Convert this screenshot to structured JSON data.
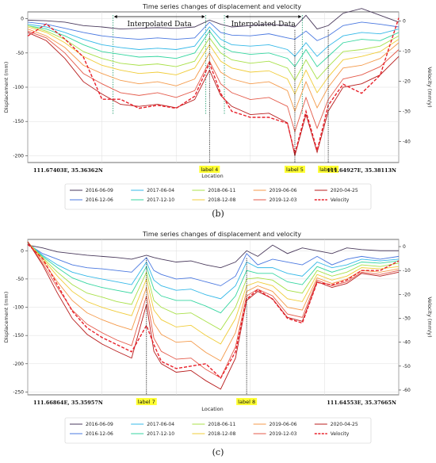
{
  "palette": {
    "2016-06-09": "#4a3a5c",
    "2016-12-06": "#4a78e0",
    "2017-06-04": "#34b8e8",
    "2017-12-10": "#35d6a0",
    "2018-06-11": "#a8e048",
    "2018-12-08": "#f0cc38",
    "2019-06-06": "#f49a4a",
    "2019-12-03": "#e45a4a",
    "2020-04-25": "#b81c1c",
    "Velocity": "#e8202a",
    "label_bg": "#ffff33"
  },
  "chart_data": [
    {
      "type": "line",
      "caption": "(b)",
      "title": "Time series changes of displacement and velocity",
      "xlabel": "Location",
      "ylabel": "Displacement (mm)",
      "ylabel_right": "Velocity (mm/y)",
      "xlim": [
        0,
        100
      ],
      "ylim": [
        -210,
        10
      ],
      "ylim_right": [
        -47,
        3
      ],
      "yticks": [
        0,
        -50,
        -100,
        -150,
        -200
      ],
      "yticks_right": [
        0,
        -10,
        -20,
        -30,
        -40
      ],
      "grid": true,
      "legend": "bottom, 6 columns",
      "start_coord": "111.67403E, 35.36362N",
      "end_coord": "111.64927E, 35.38113N",
      "vlines": [
        {
          "x": 49,
          "label": "label 4"
        },
        {
          "x": 72,
          "label": "label 5"
        },
        {
          "x": 81,
          "label": "label 6"
        }
      ],
      "interpolated_regions": [
        {
          "from": 23,
          "to": 48,
          "label": "Interpolated Data"
        },
        {
          "from": 53,
          "to": 74,
          "label": "Interpolated Data"
        }
      ],
      "x": [
        0,
        5,
        10,
        15,
        20,
        25,
        30,
        35,
        40,
        45,
        49,
        52,
        55,
        60,
        65,
        70,
        72,
        75,
        78,
        81,
        85,
        90,
        95,
        100
      ],
      "series": [
        {
          "name": "2016-06-09",
          "values": [
            -2,
            -3,
            -5,
            -10,
            -12,
            -15,
            -14,
            -13,
            -14,
            -12,
            -2,
            -8,
            -12,
            -10,
            -8,
            -10,
            -12,
            5,
            -15,
            -10,
            8,
            15,
            5,
            -5
          ]
        },
        {
          "name": "2016-12-06",
          "values": [
            -5,
            -8,
            -14,
            -20,
            -25,
            -28,
            -30,
            -28,
            -30,
            -28,
            -5,
            -20,
            -24,
            -25,
            -22,
            -28,
            -30,
            -18,
            -32,
            -25,
            -10,
            -5,
            -8,
            -12
          ]
        },
        {
          "name": "2017-06-04",
          "values": [
            -8,
            -12,
            -20,
            -30,
            -38,
            -42,
            -45,
            -43,
            -45,
            -40,
            -12,
            -30,
            -38,
            -40,
            -38,
            -45,
            -55,
            -35,
            -55,
            -40,
            -25,
            -20,
            -22,
            -15
          ]
        },
        {
          "name": "2017-12-10",
          "values": [
            -10,
            -15,
            -25,
            -38,
            -48,
            -52,
            -56,
            -55,
            -58,
            -50,
            -18,
            -40,
            -48,
            -52,
            -50,
            -58,
            -70,
            -45,
            -70,
            -55,
            -35,
            -30,
            -32,
            -20
          ]
        },
        {
          "name": "2018-06-11",
          "values": [
            -10,
            -18,
            -30,
            -48,
            -58,
            -65,
            -68,
            -66,
            -70,
            -62,
            -28,
            -50,
            -60,
            -65,
            -62,
            -72,
            -90,
            -60,
            -88,
            -70,
            -48,
            -45,
            -40,
            -25
          ]
        },
        {
          "name": "2018-12-08",
          "values": [
            -12,
            -20,
            -35,
            -55,
            -68,
            -75,
            -80,
            -78,
            -82,
            -72,
            -38,
            -62,
            -72,
            -78,
            -76,
            -88,
            -110,
            -75,
            -108,
            -85,
            -60,
            -55,
            -48,
            -30
          ]
        },
        {
          "name": "2019-06-06",
          "values": [
            -15,
            -25,
            -42,
            -68,
            -80,
            -90,
            -95,
            -92,
            -98,
            -88,
            -50,
            -78,
            -88,
            -95,
            -92,
            -105,
            -135,
            -92,
            -130,
            -100,
            -72,
            -68,
            -58,
            -35
          ]
        },
        {
          "name": "2019-12-03",
          "values": [
            -18,
            -28,
            -50,
            -80,
            -95,
            -108,
            -112,
            -108,
            -115,
            -105,
            -62,
            -95,
            -108,
            -118,
            -115,
            -128,
            -165,
            -115,
            -160,
            -118,
            -88,
            -82,
            -70,
            -45
          ]
        },
        {
          "name": "2020-04-25",
          "values": [
            -20,
            -32,
            -58,
            -92,
            -110,
            -125,
            -128,
            -125,
            -130,
            -118,
            -75,
            -112,
            -128,
            -140,
            -138,
            -152,
            -200,
            -140,
            -195,
            -135,
            -100,
            -95,
            -82,
            -55
          ]
        }
      ],
      "velocity": {
        "name": "Velocity",
        "values": [
          -5,
          -1,
          -6,
          -12,
          -26,
          -26,
          -29,
          -28,
          -29,
          -25,
          -14,
          -24,
          -30,
          -32,
          -32,
          -34,
          -44,
          -30,
          -43,
          -28,
          -21,
          -24,
          -18,
          1
        ]
      }
    },
    {
      "type": "line",
      "caption": "(c)",
      "title": "Time series changes of displacement and velocity",
      "xlabel": "Location",
      "ylabel": "Displacement (mm)",
      "ylabel_right": "Velocity (mm/y)",
      "xlim": [
        0,
        100
      ],
      "ylim": [
        -255,
        20
      ],
      "ylim_right": [
        -62,
        3
      ],
      "yticks": [
        0,
        -50,
        -100,
        -150,
        -200,
        -250
      ],
      "yticks_right": [
        0,
        -10,
        -20,
        -30,
        -40,
        -50,
        -60
      ],
      "grid": true,
      "legend": "bottom, 6 columns",
      "start_coord": "111.66864E, 35.35957N",
      "end_coord": "111.64553E, 35.37665N",
      "vlines": [
        {
          "x": 32,
          "label": "label 7"
        },
        {
          "x": 59,
          "label": "label 8"
        }
      ],
      "x": [
        0,
        4,
        8,
        12,
        16,
        20,
        24,
        28,
        32,
        34,
        36,
        40,
        44,
        48,
        52,
        56,
        59,
        62,
        66,
        70,
        74,
        78,
        82,
        86,
        90,
        95,
        100
      ],
      "series": [
        {
          "name": "2016-06-09",
          "values": [
            10,
            5,
            -2,
            -5,
            -8,
            -10,
            -12,
            -15,
            -8,
            -12,
            -15,
            -20,
            -18,
            -25,
            -30,
            -20,
            0,
            -10,
            10,
            -5,
            5,
            0,
            -5,
            5,
            2,
            0,
            0
          ]
        },
        {
          "name": "2016-12-06",
          "values": [
            12,
            -5,
            -15,
            -25,
            -30,
            -32,
            -35,
            -38,
            -12,
            -35,
            -42,
            -50,
            -48,
            -55,
            -62,
            -45,
            -5,
            -25,
            -15,
            -20,
            -25,
            -10,
            -25,
            -15,
            -10,
            -15,
            -10
          ]
        },
        {
          "name": "2017-06-04",
          "values": [
            14,
            -8,
            -25,
            -38,
            -45,
            -50,
            -55,
            -60,
            -20,
            -52,
            -62,
            -70,
            -68,
            -78,
            -85,
            -62,
            -20,
            -30,
            -30,
            -40,
            -45,
            -20,
            -30,
            -25,
            -15,
            -18,
            -15
          ]
        },
        {
          "name": "2017-12-10",
          "values": [
            14,
            -10,
            -30,
            -48,
            -58,
            -65,
            -70,
            -75,
            -28,
            -68,
            -80,
            -88,
            -88,
            -98,
            -110,
            -80,
            -35,
            -40,
            -40,
            -55,
            -60,
            -28,
            -38,
            -30,
            -20,
            -22,
            -18
          ]
        },
        {
          "name": "2018-06-11",
          "values": [
            15,
            -12,
            -38,
            -60,
            -75,
            -82,
            -90,
            -95,
            -38,
            -88,
            -100,
            -112,
            -110,
            -125,
            -140,
            -100,
            -50,
            -48,
            -52,
            -70,
            -75,
            -35,
            -45,
            -38,
            -25,
            -28,
            -22
          ]
        },
        {
          "name": "2018-12-08",
          "values": [
            15,
            -14,
            -45,
            -72,
            -90,
            -100,
            -108,
            -115,
            -50,
            -105,
            -122,
            -135,
            -132,
            -150,
            -165,
            -120,
            -62,
            -55,
            -62,
            -85,
            -90,
            -42,
            -52,
            -45,
            -30,
            -32,
            -28
          ]
        },
        {
          "name": "2019-06-06",
          "values": [
            16,
            -18,
            -55,
            -88,
            -110,
            -122,
            -132,
            -140,
            -65,
            -128,
            -148,
            -162,
            -160,
            -180,
            -195,
            -145,
            -72,
            -62,
            -72,
            -100,
            -105,
            -48,
            -58,
            -50,
            -35,
            -38,
            -32
          ]
        },
        {
          "name": "2019-12-03",
          "values": [
            16,
            -22,
            -65,
            -105,
            -130,
            -145,
            -158,
            -168,
            -80,
            -155,
            -178,
            -192,
            -190,
            -210,
            -225,
            -170,
            -80,
            -68,
            -80,
            -112,
            -118,
            -52,
            -62,
            -55,
            -38,
            -42,
            -35
          ]
        },
        {
          "name": "2020-04-25",
          "values": [
            16,
            -25,
            -75,
            -120,
            -148,
            -165,
            -178,
            -190,
            -95,
            -178,
            -200,
            -215,
            -212,
            -230,
            -245,
            -190,
            -88,
            -72,
            -85,
            -118,
            -125,
            -55,
            -65,
            -58,
            -40,
            -45,
            -38
          ]
        }
      ],
      "velocity": {
        "name": "Velocity",
        "values": [
          1,
          -5,
          -16,
          -27,
          -34,
          -38,
          -41,
          -44,
          -33,
          -41,
          -48,
          -51,
          -50,
          -49,
          -55,
          -44,
          -22,
          -18,
          -22,
          -30,
          -32,
          -15,
          -16,
          -14,
          -10,
          -10,
          -6
        ]
      }
    }
  ]
}
